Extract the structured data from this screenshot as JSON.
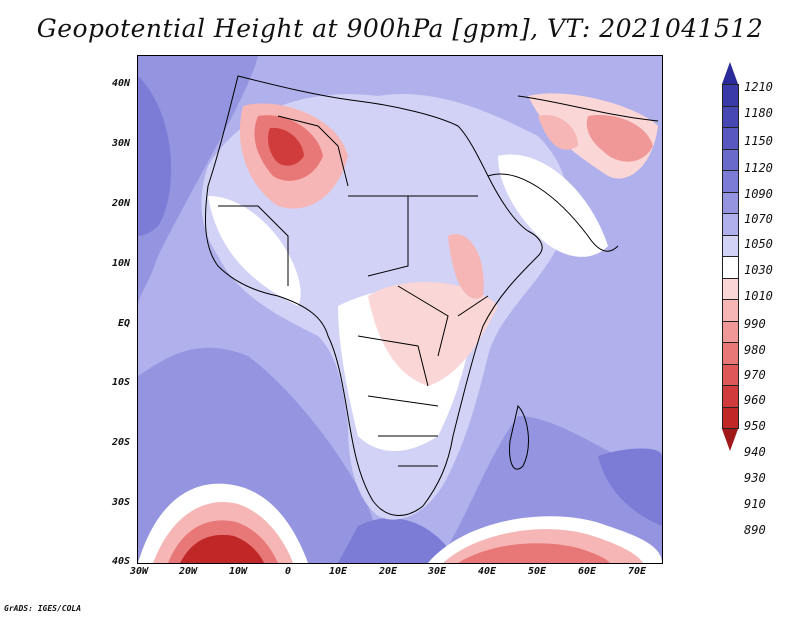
{
  "title": "Geopotential Height at 900hPa [gpm], VT: 2021041512",
  "credit": "GrADS: IGES/COLA",
  "y_axis_labels": [
    "40N",
    "30N",
    "20N",
    "10N",
    "EQ",
    "10S",
    "20S",
    "30S",
    "40S"
  ],
  "x_axis_labels": [
    "30W",
    "20W",
    "10W",
    "0",
    "10E",
    "20E",
    "30E",
    "40E",
    "50E",
    "60E",
    "70E"
  ],
  "colorbar": {
    "labels": [
      "1210",
      "1180",
      "1150",
      "1120",
      "1090",
      "1070",
      "1050",
      "1030",
      "1010",
      "990",
      "980",
      "970",
      "960",
      "950",
      "940",
      "930",
      "910",
      "890"
    ],
    "colors": [
      "#2a2a9a",
      "#3a3aa8",
      "#4848b4",
      "#5858c0",
      "#6a6acb",
      "#7c7cd6",
      "#9494e0",
      "#b0b0ec",
      "#d2d2f6",
      "#ffffff",
      "#fbd6d6",
      "#f6b6b6",
      "#f09898",
      "#e87878",
      "#de5858",
      "#d03c3c",
      "#c02828",
      "#a01818"
    ]
  },
  "map": {
    "lon_range": [
      "30W",
      "75E"
    ],
    "lat_range": [
      "40S",
      "45N"
    ],
    "field": "Geopotential Height at 900hPa",
    "units": "gpm",
    "valid_time": "2021041512"
  }
}
